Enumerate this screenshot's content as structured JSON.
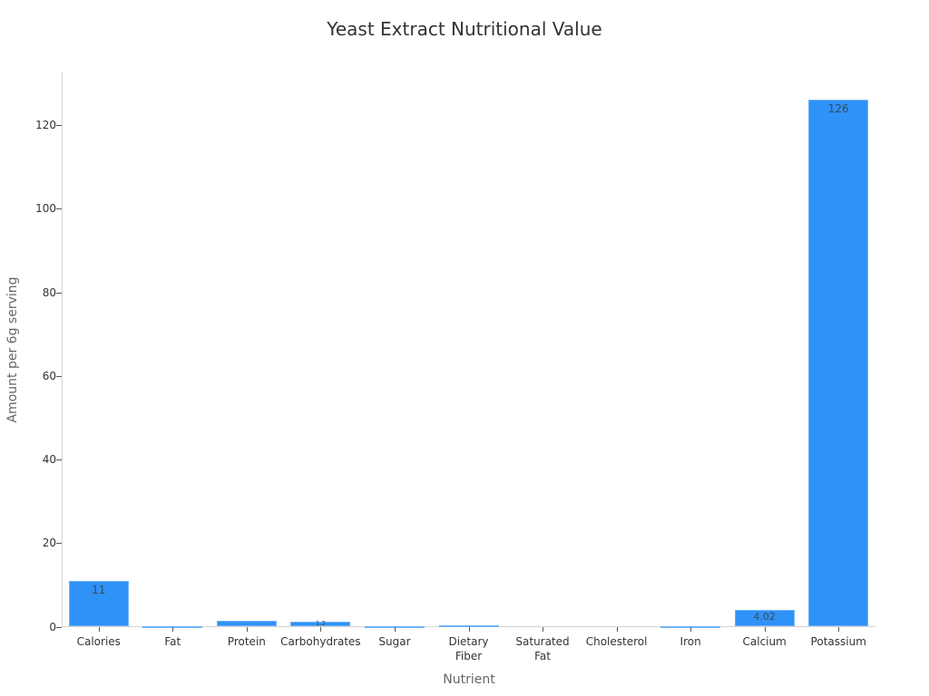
{
  "chart_data": {
    "type": "bar",
    "title": "Yeast Extract Nutritional Value",
    "xlabel": "Nutrient",
    "ylabel": "Amount per 6g serving",
    "categories": [
      "Calories",
      "Fat",
      "Protein",
      "Carbohydrates",
      "Sugar",
      "Dietary Fiber",
      "Saturated Fat",
      "Cholesterol",
      "Iron",
      "Calcium",
      "Potassium"
    ],
    "category_lines": [
      [
        "Calories"
      ],
      [
        "Fat"
      ],
      [
        "Protein"
      ],
      [
        "Carbohydrates"
      ],
      [
        "Sugar"
      ],
      [
        "Dietary",
        "Fiber"
      ],
      [
        "Saturated",
        "Fat"
      ],
      [
        "Cholesterol"
      ],
      [
        "Iron"
      ],
      [
        "Calcium"
      ],
      [
        "Potassium"
      ]
    ],
    "values": [
      11,
      0.1,
      1.5,
      1.2,
      0.1,
      0.4,
      0,
      0,
      0.2,
      4.02,
      126
    ],
    "data_labels": [
      "11",
      "",
      "",
      "1.2",
      "",
      "",
      "",
      "",
      "",
      "4.02",
      "126"
    ],
    "ylim": [
      0,
      132
    ],
    "yticks": [
      0,
      20,
      40,
      60,
      80,
      100,
      120
    ],
    "grid": false,
    "legend": null,
    "bar_color": "#2f92f7"
  }
}
